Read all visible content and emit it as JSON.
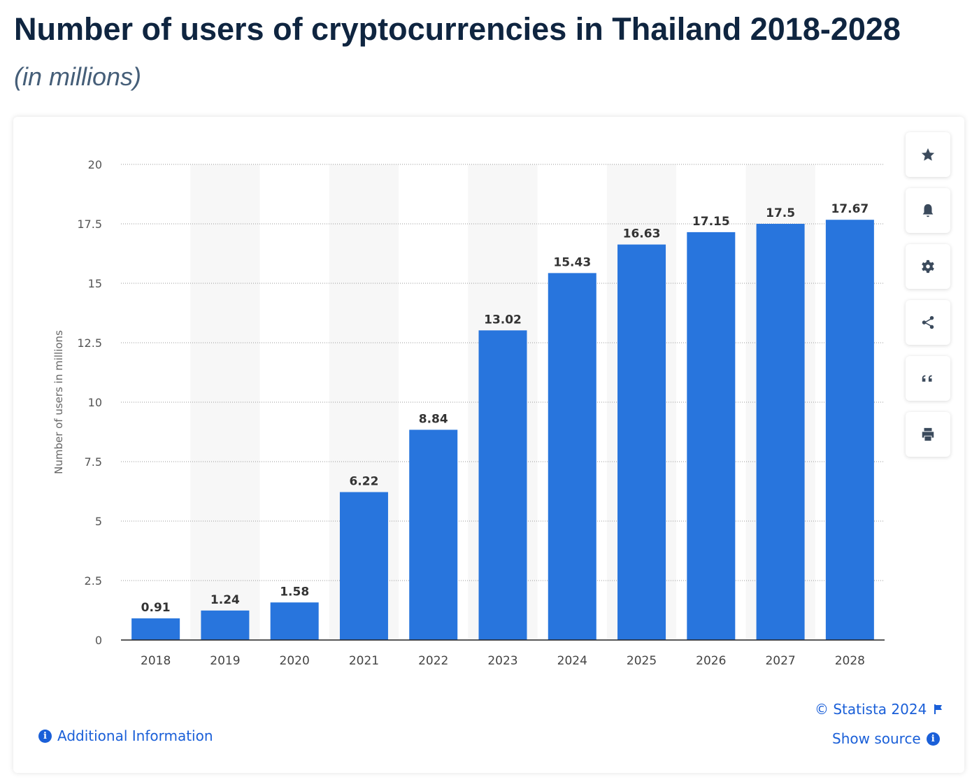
{
  "header": {
    "title": "Number of users of cryptocurrencies in Thailand 2018-2028",
    "subtitle": "(in millions)"
  },
  "chart_data": {
    "type": "bar",
    "title": "Number of users of cryptocurrencies in Thailand 2018-2028",
    "subtitle": "(in millions)",
    "xlabel": "",
    "ylabel": "Number of users in millions",
    "categories": [
      "2018",
      "2019",
      "2020",
      "2021",
      "2022",
      "2023",
      "2024",
      "2025",
      "2026",
      "2027",
      "2028"
    ],
    "values": [
      0.91,
      1.24,
      1.58,
      6.22,
      8.84,
      13.02,
      15.43,
      16.63,
      17.15,
      17.5,
      17.67
    ],
    "data_labels": [
      "0.91",
      "1.24",
      "1.58",
      "6.22",
      "8.84",
      "13.02",
      "15.43",
      "16.63",
      "17.15",
      "17.5",
      "17.67"
    ],
    "ylim": [
      0,
      20
    ],
    "yticks": [
      "0",
      "2.5",
      "5",
      "7.5",
      "10",
      "12.5",
      "15",
      "17.5",
      "20"
    ],
    "grid": true,
    "bar_color": "#2875dd"
  },
  "sidebar": [
    {
      "icon": "star-icon",
      "name": "favorite-button"
    },
    {
      "icon": "bell-icon",
      "name": "notification-button"
    },
    {
      "icon": "gear-icon",
      "name": "settings-button"
    },
    {
      "icon": "share-icon",
      "name": "share-button"
    },
    {
      "icon": "quote-icon",
      "name": "cite-button"
    },
    {
      "icon": "print-icon",
      "name": "print-button"
    }
  ],
  "footer": {
    "copyright": "© Statista 2024",
    "show_source": "Show source",
    "additional_info": "Additional Information"
  },
  "colors": {
    "link": "#1a5fd8",
    "title": "#0f2540"
  }
}
